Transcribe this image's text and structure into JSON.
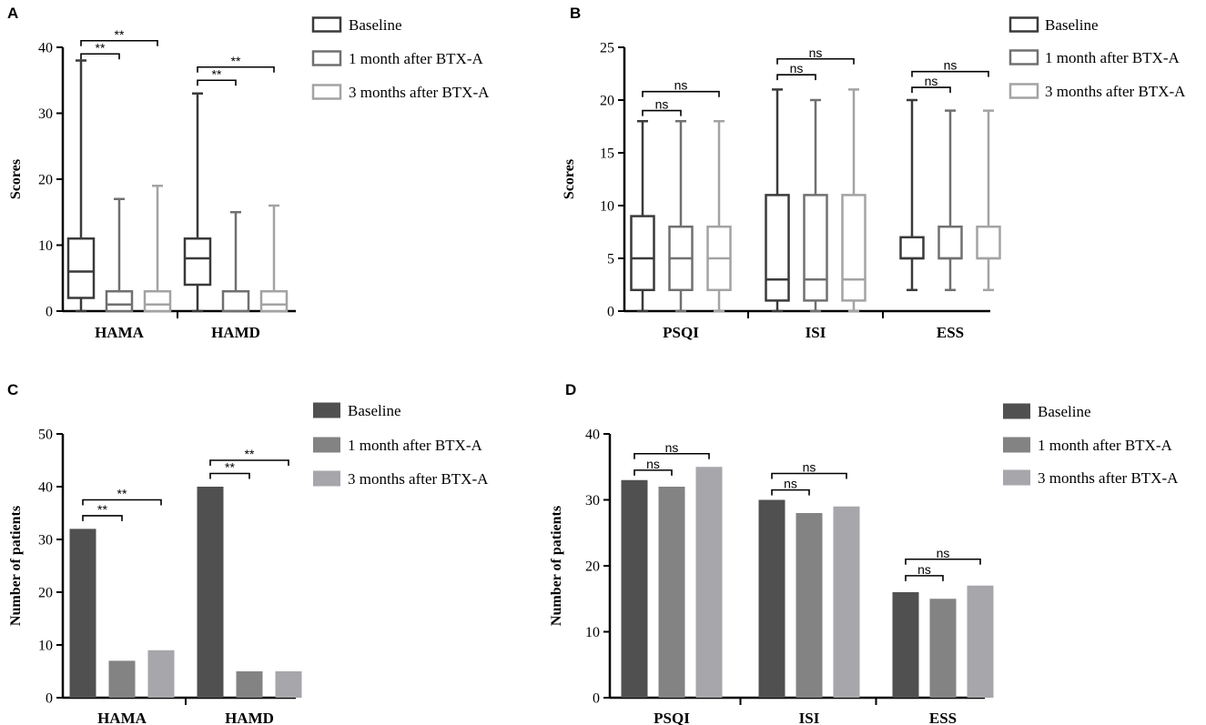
{
  "colors": {
    "baseline": "#3a3a3a",
    "month1": "#707070",
    "month3": "#a3a3a3",
    "bar_baseline": "#505050",
    "bar_month1": "#838383",
    "bar_month3": "#a6a6ab",
    "axis": "#000000"
  },
  "legend": [
    "Baseline",
    "1 month after BTX-A",
    "3 months after BTX-A"
  ],
  "chart_data": [
    {
      "panel": "A",
      "type": "box",
      "ylabel": "Scores",
      "ylim": [
        0,
        40
      ],
      "yticks": [
        0,
        10,
        20,
        30,
        40
      ],
      "groups": [
        {
          "category": "HAMA",
          "boxes": [
            {
              "series": "Baseline",
              "min": 0,
              "q1": 2,
              "median": 6,
              "q3": 11,
              "max": 38
            },
            {
              "series": "1 month after BTX-A",
              "min": 0,
              "q1": 0,
              "median": 1,
              "q3": 3,
              "max": 17
            },
            {
              "series": "3 months after BTX-A",
              "min": 0,
              "q1": 0,
              "median": 1,
              "q3": 3,
              "max": 19
            }
          ],
          "comparisons": [
            {
              "from": 0,
              "to": 1,
              "label": "**",
              "y": 39
            },
            {
              "from": 0,
              "to": 2,
              "label": "**",
              "y": 41
            }
          ]
        },
        {
          "category": "HAMD",
          "boxes": [
            {
              "series": "Baseline",
              "min": 0,
              "q1": 4,
              "median": 8,
              "q3": 11,
              "max": 33
            },
            {
              "series": "1 month after BTX-A",
              "min": 0,
              "q1": 0,
              "median": 0,
              "q3": 3,
              "max": 15
            },
            {
              "series": "3 months after BTX-A",
              "min": 0,
              "q1": 0,
              "median": 1,
              "q3": 3,
              "max": 16
            }
          ],
          "comparisons": [
            {
              "from": 0,
              "to": 1,
              "label": "**",
              "y": 35
            },
            {
              "from": 0,
              "to": 2,
              "label": "**",
              "y": 37
            }
          ]
        }
      ]
    },
    {
      "panel": "B",
      "type": "box",
      "ylabel": "Scores",
      "ylim": [
        0,
        25
      ],
      "yticks": [
        0,
        5,
        10,
        15,
        20,
        25
      ],
      "groups": [
        {
          "category": "PSQI",
          "boxes": [
            {
              "series": "Baseline",
              "min": 0,
              "q1": 2,
              "median": 5,
              "q3": 9,
              "max": 18
            },
            {
              "series": "1 month after BTX-A",
              "min": 0,
              "q1": 2,
              "median": 5,
              "q3": 8,
              "max": 18
            },
            {
              "series": "3 months after BTX-A",
              "min": 0,
              "q1": 2,
              "median": 5,
              "q3": 8,
              "max": 18
            }
          ],
          "comparisons": [
            {
              "from": 0,
              "to": 1,
              "label": "ns",
              "y": 19
            },
            {
              "from": 0,
              "to": 2,
              "label": "ns",
              "y": 20.8
            }
          ]
        },
        {
          "category": "ISI",
          "boxes": [
            {
              "series": "Baseline",
              "min": 0,
              "q1": 1,
              "median": 3,
              "q3": 11,
              "max": 21
            },
            {
              "series": "1 month after BTX-A",
              "min": 0,
              "q1": 1,
              "median": 3,
              "q3": 11,
              "max": 20
            },
            {
              "series": "3 months after BTX-A",
              "min": 0,
              "q1": 1,
              "median": 3,
              "q3": 11,
              "max": 21
            }
          ],
          "comparisons": [
            {
              "from": 0,
              "to": 1,
              "label": "ns",
              "y": 22.4
            },
            {
              "from": 0,
              "to": 2,
              "label": "ns",
              "y": 23.9
            }
          ]
        },
        {
          "category": "ESS",
          "boxes": [
            {
              "series": "Baseline",
              "min": 2,
              "q1": 5,
              "median": 5,
              "q3": 7,
              "max": 20
            },
            {
              "series": "1 month after BTX-A",
              "min": 2,
              "q1": 5,
              "median": 5,
              "q3": 8,
              "max": 19
            },
            {
              "series": "3 months after BTX-A",
              "min": 2,
              "q1": 5,
              "median": 5,
              "q3": 8,
              "max": 19
            }
          ],
          "comparisons": [
            {
              "from": 0,
              "to": 1,
              "label": "ns",
              "y": 21.2
            },
            {
              "from": 0,
              "to": 2,
              "label": "ns",
              "y": 22.7
            }
          ]
        }
      ]
    },
    {
      "panel": "C",
      "type": "bar",
      "ylabel": "Number of patients",
      "ylim": [
        0,
        50
      ],
      "yticks": [
        0,
        10,
        20,
        30,
        40,
        50
      ],
      "groups": [
        {
          "category": "HAMA",
          "values": [
            32,
            7,
            9
          ],
          "comparisons": [
            {
              "from": 0,
              "to": 1,
              "label": "**",
              "y": 34.5
            },
            {
              "from": 0,
              "to": 2,
              "label": "**",
              "y": 37.5
            }
          ]
        },
        {
          "category": "HAMD",
          "values": [
            40,
            5,
            5
          ],
          "comparisons": [
            {
              "from": 0,
              "to": 1,
              "label": "**",
              "y": 42.5
            },
            {
              "from": 0,
              "to": 2,
              "label": "**",
              "y": 45
            }
          ]
        }
      ]
    },
    {
      "panel": "D",
      "type": "bar",
      "ylabel": "Number of patients",
      "ylim": [
        0,
        40
      ],
      "yticks": [
        0,
        10,
        20,
        30,
        40
      ],
      "groups": [
        {
          "category": "PSQI",
          "values": [
            33,
            32,
            35
          ],
          "comparisons": [
            {
              "from": 0,
              "to": 1,
              "label": "ns",
              "y": 34.5
            },
            {
              "from": 0,
              "to": 2,
              "label": "ns",
              "y": 37
            }
          ]
        },
        {
          "category": "ISI",
          "values": [
            30,
            28,
            29
          ],
          "comparisons": [
            {
              "from": 0,
              "to": 1,
              "label": "ns",
              "y": 31.5
            },
            {
              "from": 0,
              "to": 2,
              "label": "ns",
              "y": 34
            }
          ]
        },
        {
          "category": "ESS",
          "values": [
            16,
            15,
            17
          ],
          "comparisons": [
            {
              "from": 0,
              "to": 1,
              "label": "ns",
              "y": 18.5
            },
            {
              "from": 0,
              "to": 2,
              "label": "ns",
              "y": 21
            }
          ]
        }
      ]
    }
  ]
}
